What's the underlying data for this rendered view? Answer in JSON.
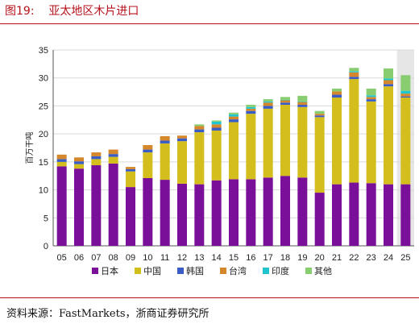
{
  "figure": {
    "title": "图19:    亚太地区木片进口",
    "source": "资料来源：FastMarkets，浙商证券研究所"
  },
  "colors": {
    "日本": "#7a0f99",
    "中国": "#d4be1e",
    "韩国": "#3a5cc6",
    "台湾": "#d4872b",
    "印度": "#1fc6cf",
    "其他": "#88cd6f",
    "forecast_band": "#e6e6e6",
    "accent": "#b5121b"
  },
  "chart_data": {
    "type": "bar",
    "stacked": true,
    "categories": [
      "05",
      "06",
      "07",
      "08",
      "09",
      "10",
      "11",
      "12",
      "13",
      "14",
      "15",
      "16",
      "17",
      "18",
      "19",
      "20",
      "21",
      "22",
      "23",
      "24",
      "25"
    ],
    "ylabel": "百万干吨",
    "xlabel": "",
    "ylim": [
      0,
      35
    ],
    "yticks": [
      0,
      5,
      10,
      15,
      20,
      25,
      30,
      35
    ],
    "grid": true,
    "legend_position": "bottom",
    "forecast_category": "25",
    "series": [
      {
        "name": "日本",
        "values": [
          14.2,
          13.8,
          14.4,
          14.7,
          10.5,
          12.1,
          11.8,
          11.1,
          11.0,
          11.7,
          11.9,
          11.9,
          12.2,
          12.5,
          12.2,
          9.5,
          11.0,
          11.3,
          11.2,
          11.0,
          11.0
        ]
      },
      {
        "name": "中国",
        "values": [
          0.8,
          0.8,
          1.1,
          1.2,
          2.8,
          4.6,
          6.5,
          7.6,
          9.3,
          8.9,
          10.2,
          11.7,
          12.3,
          12.7,
          12.6,
          13.5,
          15.5,
          18.5,
          14.6,
          17.5,
          15.5
        ]
      },
      {
        "name": "韩国",
        "values": [
          0.5,
          0.5,
          0.5,
          0.5,
          0.4,
          0.5,
          0.5,
          0.5,
          0.5,
          0.5,
          0.5,
          0.5,
          0.5,
          0.4,
          0.4,
          0.3,
          0.5,
          0.4,
          0.4,
          0.4,
          0.2
        ]
      },
      {
        "name": "台湾",
        "values": [
          0.8,
          0.7,
          0.7,
          0.8,
          0.4,
          0.8,
          0.8,
          0.5,
          0.6,
          0.6,
          0.5,
          0.4,
          0.6,
          0.4,
          0.5,
          0.3,
          0.6,
          0.8,
          0.4,
          0.7,
          0.5
        ]
      },
      {
        "name": "印度",
        "values": [
          0.0,
          0.0,
          0.0,
          0.0,
          0.0,
          0.0,
          0.0,
          0.0,
          0.0,
          0.5,
          0.4,
          0.3,
          0.2,
          0.1,
          0.1,
          0.0,
          0.0,
          0.2,
          0.3,
          0.3,
          0.5
        ]
      },
      {
        "name": "其他",
        "values": [
          0.0,
          0.0,
          0.0,
          0.0,
          0.0,
          0.0,
          0.0,
          0.0,
          0.3,
          0.2,
          0.3,
          0.4,
          0.4,
          0.5,
          1.0,
          0.5,
          0.5,
          0.6,
          1.2,
          1.8,
          2.8
        ]
      }
    ]
  }
}
